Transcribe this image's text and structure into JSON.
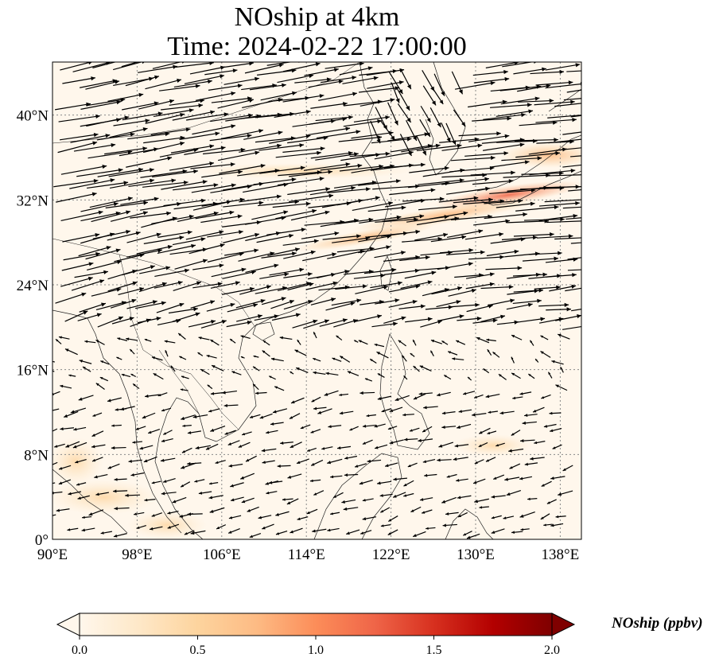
{
  "title": {
    "line1": "NOship at 4km",
    "line2": "Time: 2024-02-22 17:00:00"
  },
  "map": {
    "projection": "PlateCarree",
    "lon_range": [
      90,
      140
    ],
    "lat_range": [
      0,
      45
    ],
    "gridlines": "dotted",
    "lon_ticks": [
      {
        "value": 90,
        "label": "90°E"
      },
      {
        "value": 98,
        "label": "98°E"
      },
      {
        "value": 106,
        "label": "106°E"
      },
      {
        "value": 114,
        "label": "114°E"
      },
      {
        "value": 122,
        "label": "122°E"
      },
      {
        "value": 130,
        "label": "130°E"
      },
      {
        "value": 138,
        "label": "138°E"
      }
    ],
    "lat_ticks": [
      {
        "value": 0,
        "label": "0°"
      },
      {
        "value": 8,
        "label": "8°N"
      },
      {
        "value": 16,
        "label": "16°N"
      },
      {
        "value": 24,
        "label": "24°N"
      },
      {
        "value": 32,
        "label": "32°N"
      },
      {
        "value": 40,
        "label": "40°N"
      }
    ],
    "field": "NOship concentration (ppbv), mostly near 0 with a ship-lane plume ~0.5–1.3 ppbv along 28–34°N from 118°E to 140°E",
    "wind_vectors": "westerlies north of 20°N, easterly/northeasterly trades south of 18°N"
  },
  "colorbar": {
    "colormap": "OrRd",
    "min": 0.0,
    "max": 2.0,
    "extend": "both",
    "ticks": [
      {
        "value": 0.0,
        "label": "0.0"
      },
      {
        "value": 0.5,
        "label": "0.5"
      },
      {
        "value": 1.0,
        "label": "1.0"
      },
      {
        "value": 1.5,
        "label": "1.5"
      },
      {
        "value": 2.0,
        "label": "2.0"
      }
    ],
    "label": "NOship (ppbv)",
    "colors": [
      "#fff7ec",
      "#fee8c8",
      "#fdd49e",
      "#fdbb84",
      "#fc8d59",
      "#ef6548",
      "#d7301f",
      "#b30000",
      "#7f0000"
    ]
  }
}
